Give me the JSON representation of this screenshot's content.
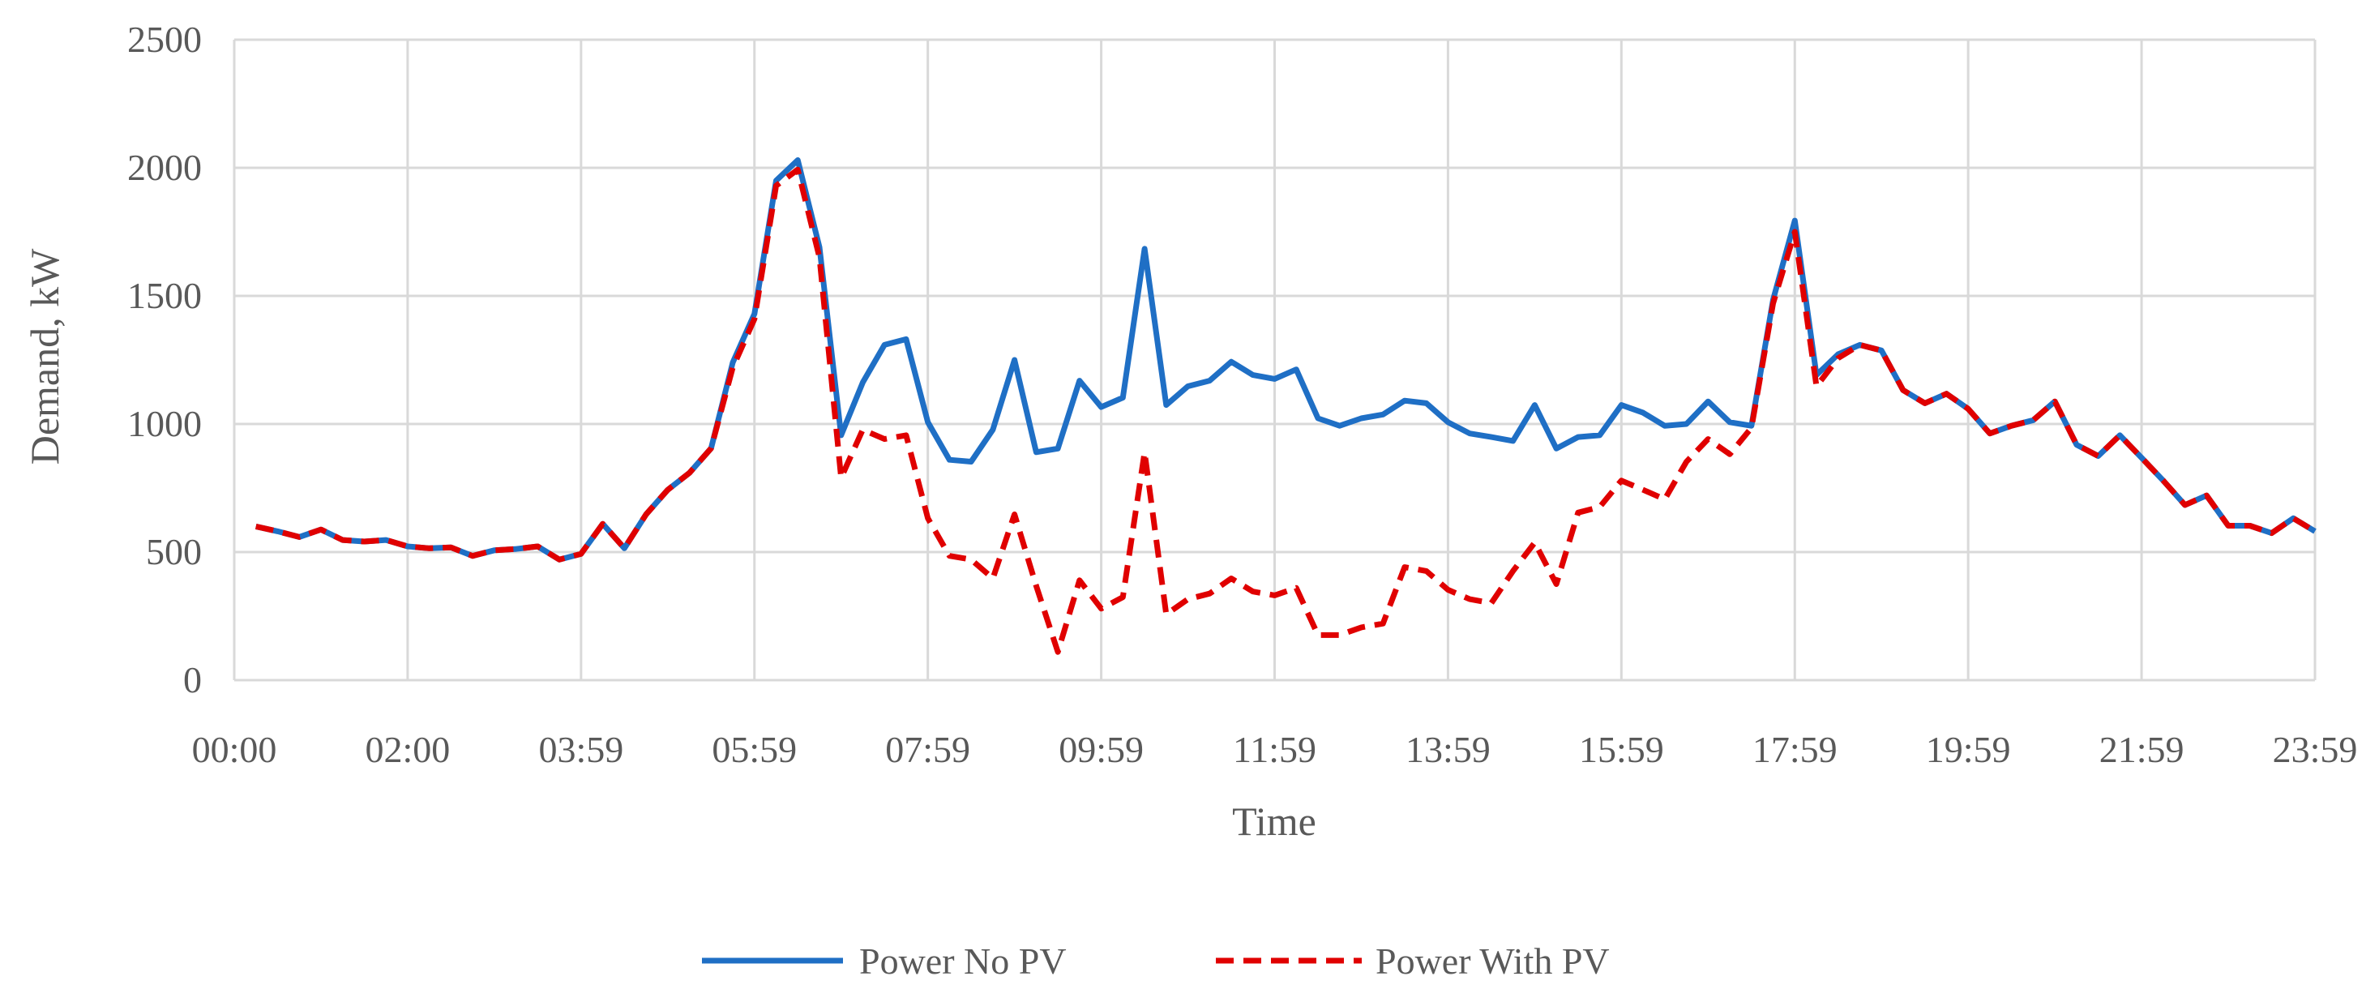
{
  "chart_data": {
    "type": "line",
    "title": "",
    "xlabel": "Time",
    "ylabel": "Demand, kW",
    "ylim": [
      0,
      2500
    ],
    "yticks": [
      0,
      500,
      1000,
      1500,
      2000,
      2500
    ],
    "xtick_labels": [
      "00:00",
      "02:00",
      "03:59",
      "05:59",
      "07:59",
      "09:59",
      "11:59",
      "13:59",
      "15:59",
      "17:59",
      "19:59",
      "21:59",
      "23:59"
    ],
    "interval_minutes": 15,
    "points_per_x_tick": 8,
    "grid": true,
    "legend_position": "bottom",
    "series": [
      {
        "name": "Power No PV",
        "color": "#1F6FC5",
        "style": "solid",
        "values": [
          600,
          581,
          559,
          588,
          547,
          541,
          547,
          522,
          515,
          518,
          485,
          507,
          512,
          522,
          471,
          493,
          610,
          515,
          647,
          743,
          809,
          905,
          1240,
          1430,
          1950,
          2030,
          1690,
          956,
          1162,
          1309,
          1331,
          1007,
          860,
          853,
          978,
          1250,
          890,
          904,
          1169,
          1066,
          1103,
          1684,
          1074,
          1147,
          1169,
          1243,
          1191,
          1176,
          1213,
          1022,
          993,
          1022,
          1037,
          1091,
          1081,
          1007,
          963,
          949,
          934,
          1074,
          904,
          949,
          956,
          1074,
          1044,
          993,
          1000,
          1088,
          1007,
          993,
          1485,
          1794,
          1191,
          1272,
          1309,
          1287,
          1132,
          1081,
          1118,
          1059,
          963,
          993,
          1015,
          1088,
          919,
          875,
          956,
          868,
          779,
          684,
          721,
          603,
          603,
          574,
          632,
          581
        ]
      },
      {
        "name": "Power With PV",
        "color": "#E00000",
        "style": "dashed",
        "values": [
          600,
          581,
          559,
          588,
          547,
          541,
          547,
          522,
          515,
          518,
          485,
          507,
          512,
          522,
          471,
          493,
          610,
          515,
          647,
          743,
          809,
          905,
          1220,
          1410,
          1930,
          1993,
          1650,
          790,
          978,
          941,
          956,
          632,
          485,
          471,
          397,
          647,
          368,
          110,
          390,
          279,
          324,
          890,
          257,
          316,
          338,
          397,
          346,
          331,
          360,
          176,
          176,
          206,
          221,
          441,
          426,
          353,
          316,
          301,
          426,
          537,
          375,
          654,
          676,
          779,
          743,
          706,
          853,
          941,
          882,
          985,
          1471,
          1750,
          1147,
          1257,
          1309,
          1287,
          1132,
          1081,
          1118,
          1059,
          963,
          993,
          1015,
          1088,
          919,
          875,
          956,
          868,
          779,
          684,
          721,
          603,
          603,
          574,
          632,
          581
        ]
      }
    ]
  }
}
